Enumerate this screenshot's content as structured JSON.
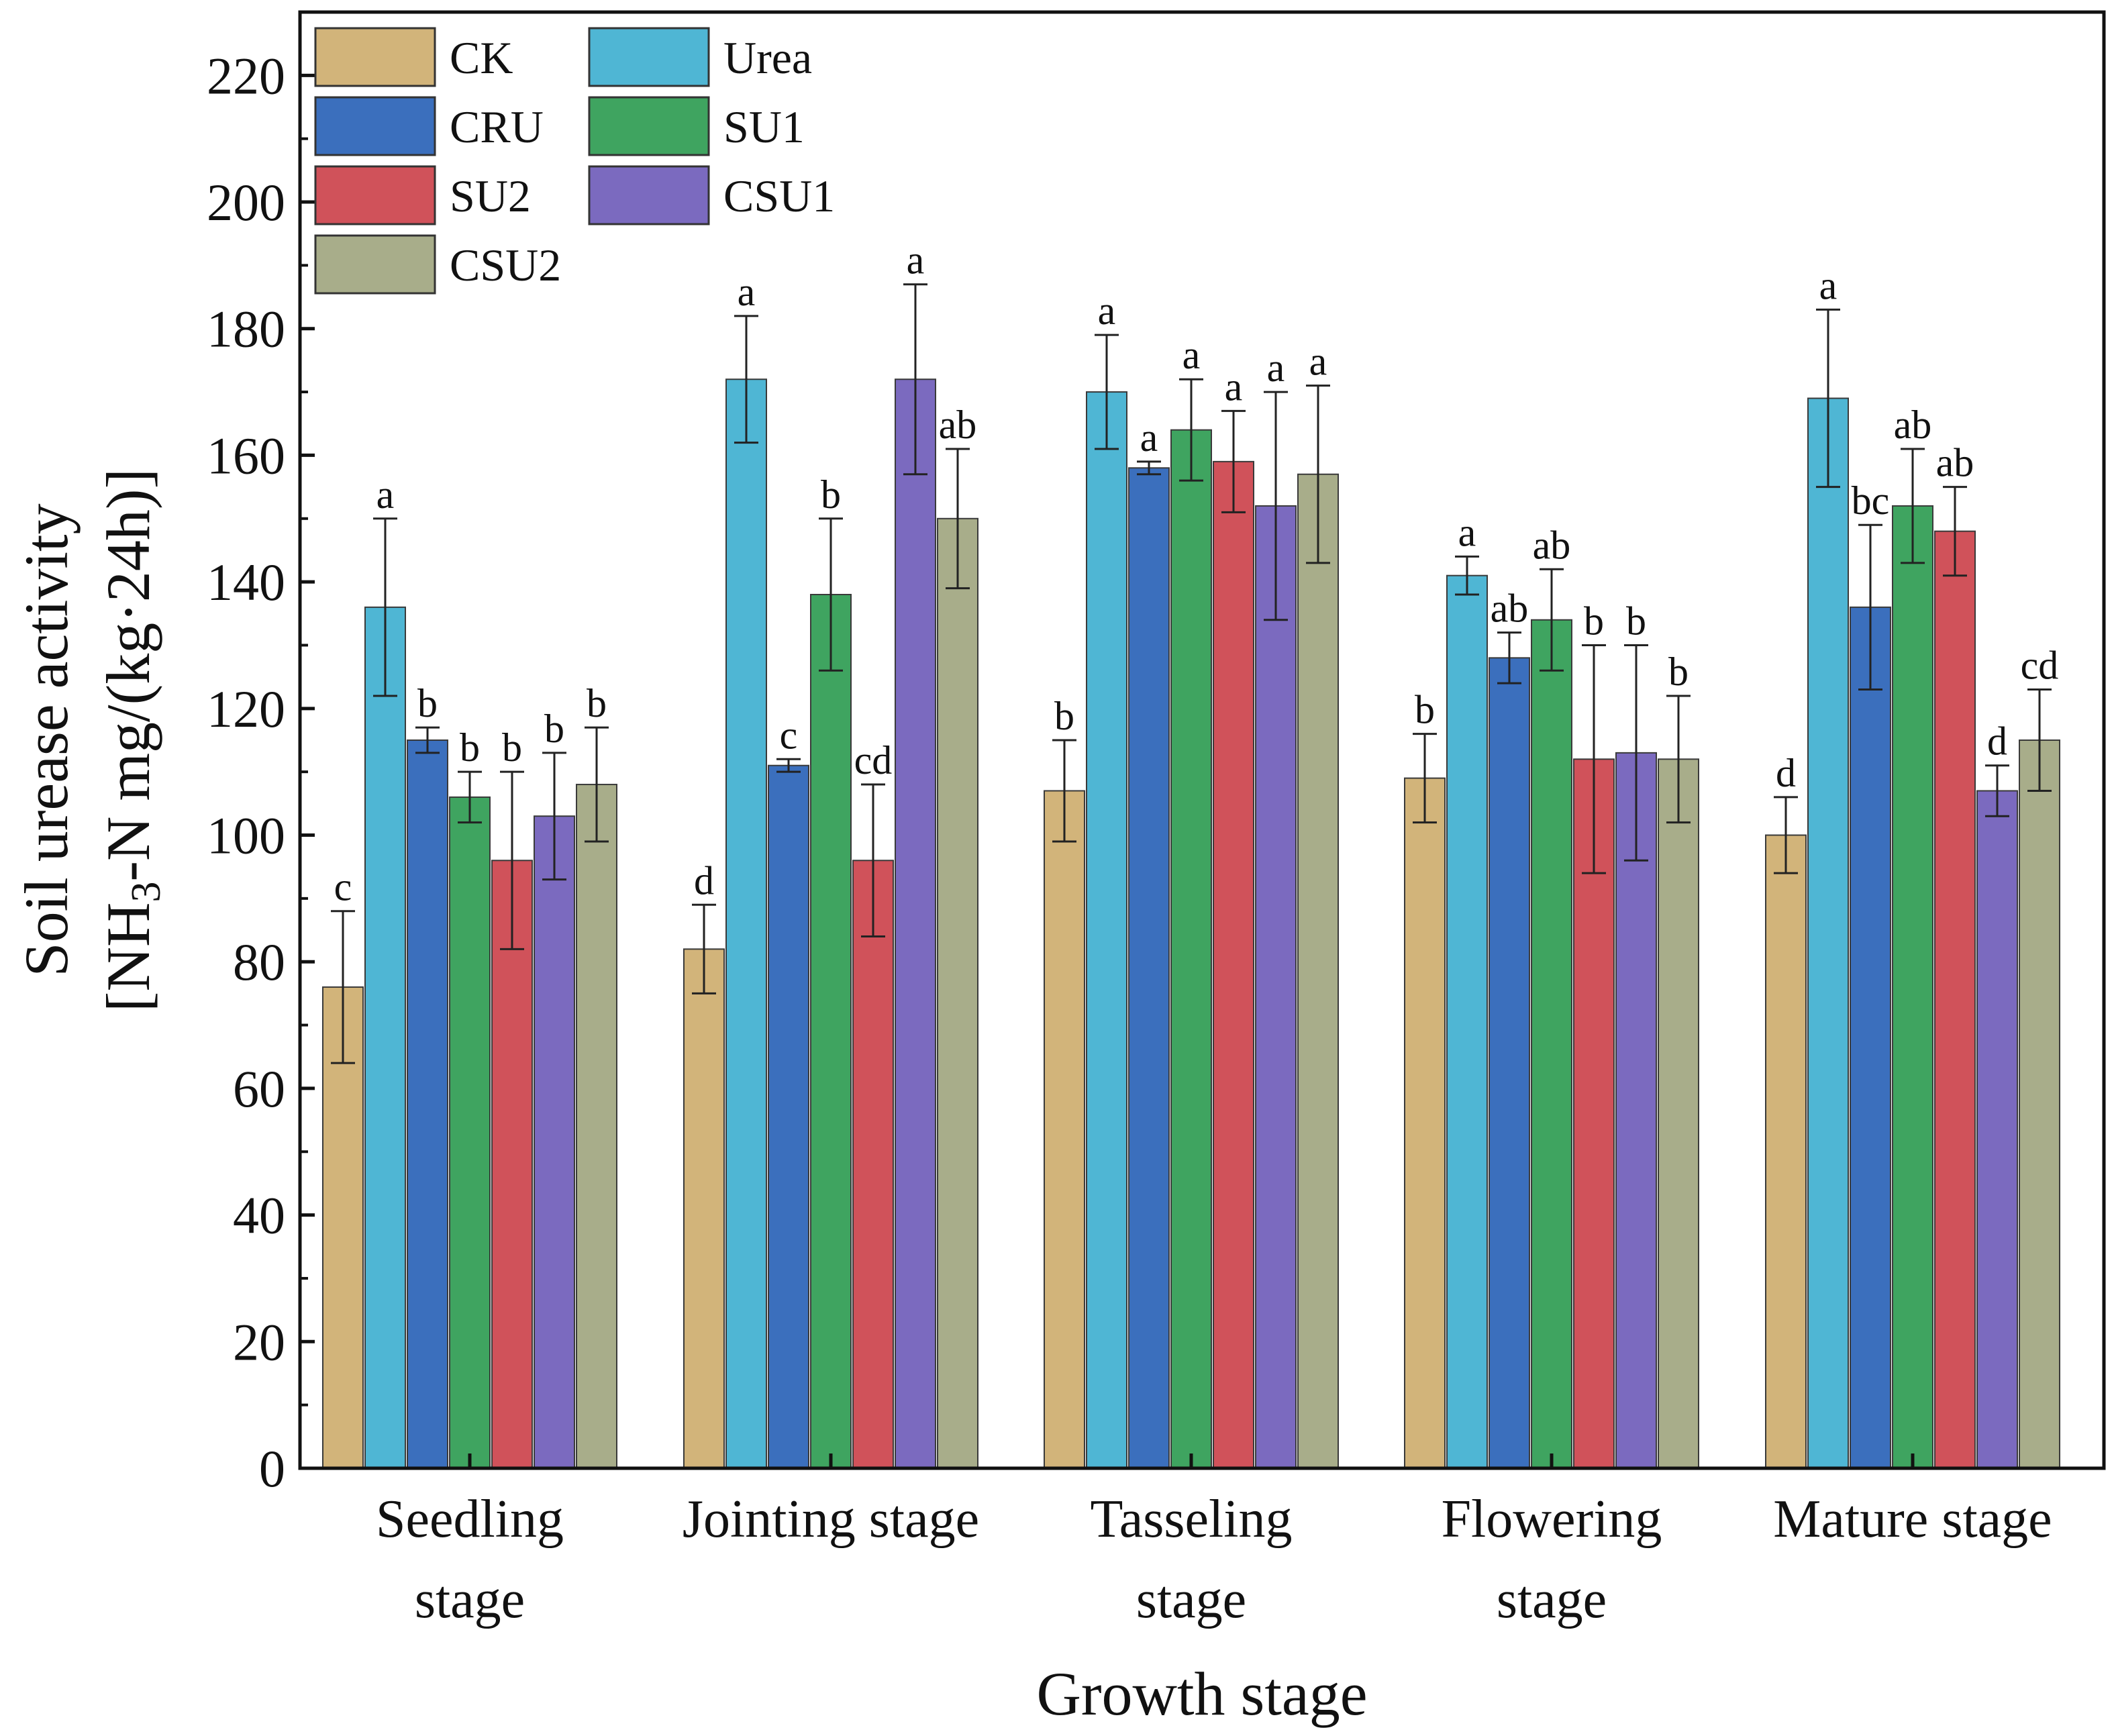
{
  "chart_data": {
    "type": "bar",
    "title": "",
    "xlabel": "Growth stage",
    "ylabel_line1": "Soil urease activity",
    "ylabel_line2": {
      "pre": "[NH",
      "sub": "3",
      "post": "-N mg/(kg·24h)]"
    },
    "ylim": [
      0,
      230
    ],
    "yticks": [
      "0",
      "20",
      "40",
      "60",
      "80",
      "100",
      "120",
      "140",
      "160",
      "180",
      "200",
      "220"
    ],
    "categories": [
      [
        "Seedling",
        "stage"
      ],
      [
        "Jointing stage"
      ],
      [
        "Tasseling",
        "stage"
      ],
      [
        "Flowering",
        "stage"
      ],
      [
        "Mature stage"
      ]
    ],
    "series": [
      {
        "name": "CK",
        "color": "#d2b47a",
        "values": [
          76,
          82,
          107,
          109,
          100
        ],
        "errors": [
          12,
          7,
          8,
          7,
          6
        ],
        "letters": [
          "c",
          "d",
          "b",
          "b",
          "d"
        ]
      },
      {
        "name": "Urea",
        "color": "#4fb6d4",
        "values": [
          136,
          172,
          170,
          141,
          169
        ],
        "errors": [
          14,
          10,
          9,
          3,
          14
        ],
        "letters": [
          "a",
          "a",
          "a",
          "a",
          "a"
        ]
      },
      {
        "name": "CRU",
        "color": "#3b6fbd",
        "values": [
          115,
          111,
          158,
          128,
          136
        ],
        "errors": [
          2,
          1,
          1,
          4,
          13
        ],
        "letters": [
          "b",
          "c",
          "a",
          "ab",
          "bc"
        ]
      },
      {
        "name": "SU1",
        "color": "#3fa460",
        "values": [
          106,
          138,
          164,
          134,
          152
        ],
        "errors": [
          4,
          12,
          8,
          8,
          9
        ],
        "letters": [
          "b",
          "b",
          "a",
          "ab",
          "ab"
        ]
      },
      {
        "name": "SU2",
        "color": "#d0525a",
        "values": [
          96,
          96,
          159,
          112,
          148
        ],
        "errors": [
          14,
          12,
          8,
          18,
          7
        ],
        "letters": [
          "b",
          "cd",
          "a",
          "b",
          "ab"
        ]
      },
      {
        "name": "CSU1",
        "color": "#7b6abf",
        "values": [
          103,
          172,
          152,
          113,
          107
        ],
        "errors": [
          10,
          15,
          18,
          17,
          4
        ],
        "letters": [
          "b",
          "a",
          "a",
          "b",
          "d"
        ]
      },
      {
        "name": "CSU2",
        "color": "#a8ad8a",
        "values": [
          108,
          150,
          157,
          112,
          115
        ],
        "errors": [
          9,
          11,
          14,
          10,
          8
        ],
        "letters": [
          "b",
          "ab",
          "a",
          "b",
          "cd"
        ]
      }
    ],
    "legend_position": "top-left",
    "grid": false
  }
}
